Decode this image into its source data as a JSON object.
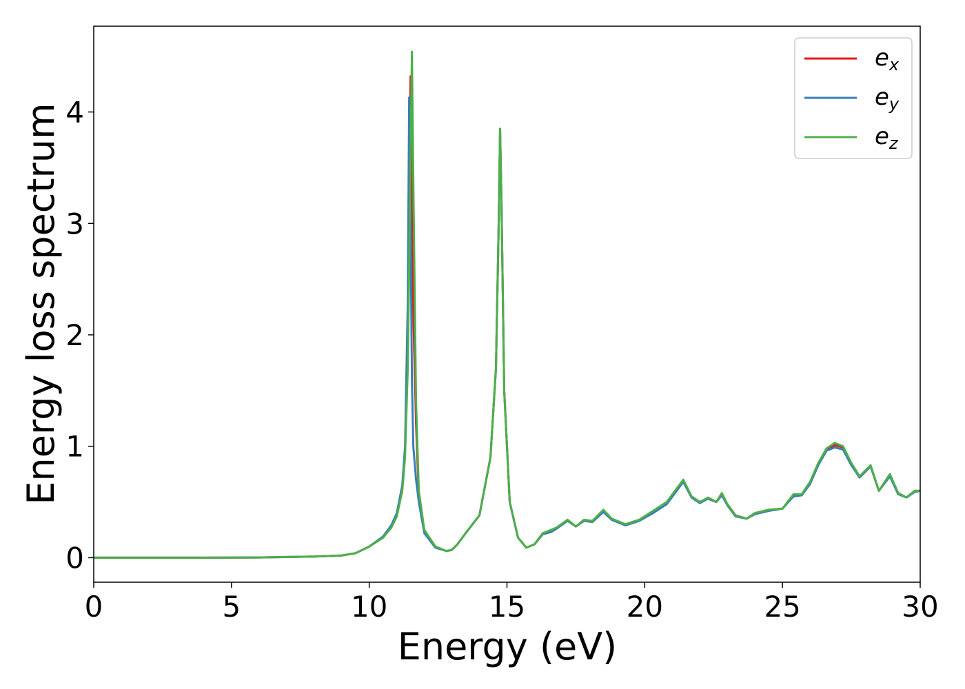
{
  "chart_data": {
    "type": "line",
    "xlabel": "Energy (eV)",
    "ylabel": "Energy loss spectrum",
    "x": [
      0,
      2,
      4,
      6,
      8,
      9,
      9.5,
      10,
      10.5,
      10.8,
      11,
      11.2,
      11.3,
      11.4,
      11.45,
      11.5,
      11.55,
      11.6,
      11.7,
      11.8,
      12,
      12.4,
      12.8,
      13,
      13.2,
      13.5,
      14,
      14.4,
      14.6,
      14.7,
      14.75,
      14.8,
      14.9,
      15.1,
      15.4,
      15.7,
      16,
      16.3,
      16.6,
      16.8,
      17.2,
      17.5,
      17.8,
      18.1,
      18.5,
      18.8,
      19.3,
      19.8,
      20.3,
      20.8,
      21.1,
      21.4,
      21.7,
      22,
      22.3,
      22.6,
      22.8,
      23,
      23.3,
      23.7,
      24,
      24.5,
      25,
      25.4,
      25.7,
      26,
      26.3,
      26.6,
      26.9,
      27.2,
      27.5,
      27.8,
      28.2,
      28.5,
      28.9,
      29.2,
      29.5,
      29.8,
      30
    ],
    "series": [
      {
        "name": "ex",
        "color": "#e41a1c",
        "values": [
          0,
          0,
          0,
          0.002,
          0.01,
          0.02,
          0.04,
          0.1,
          0.18,
          0.27,
          0.38,
          0.62,
          0.95,
          1.9,
          3.2,
          4.32,
          3.0,
          2.2,
          1.2,
          0.55,
          0.24,
          0.1,
          0.06,
          0.07,
          0.12,
          0.22,
          0.38,
          0.9,
          1.7,
          3.0,
          3.84,
          3.2,
          1.5,
          0.5,
          0.18,
          0.09,
          0.12,
          0.22,
          0.24,
          0.27,
          0.34,
          0.28,
          0.34,
          0.33,
          0.42,
          0.35,
          0.3,
          0.34,
          0.41,
          0.5,
          0.59,
          0.69,
          0.55,
          0.5,
          0.53,
          0.5,
          0.57,
          0.48,
          0.38,
          0.35,
          0.4,
          0.43,
          0.44,
          0.56,
          0.57,
          0.67,
          0.84,
          0.97,
          1.01,
          0.99,
          0.84,
          0.72,
          0.82,
          0.6,
          0.74,
          0.58,
          0.54,
          0.6,
          0.6
        ]
      },
      {
        "name": "ey",
        "color": "#377eb8",
        "values": [
          0,
          0,
          0,
          0.002,
          0.01,
          0.02,
          0.04,
          0.1,
          0.19,
          0.29,
          0.4,
          0.65,
          1.0,
          2.3,
          4.13,
          3.0,
          1.6,
          1.0,
          0.7,
          0.5,
          0.22,
          0.09,
          0.06,
          0.07,
          0.12,
          0.22,
          0.38,
          0.9,
          1.7,
          3.0,
          3.84,
          3.2,
          1.5,
          0.5,
          0.18,
          0.09,
          0.12,
          0.21,
          0.23,
          0.26,
          0.33,
          0.28,
          0.33,
          0.32,
          0.41,
          0.34,
          0.29,
          0.33,
          0.4,
          0.48,
          0.58,
          0.68,
          0.54,
          0.49,
          0.53,
          0.5,
          0.56,
          0.47,
          0.37,
          0.35,
          0.39,
          0.42,
          0.44,
          0.55,
          0.56,
          0.66,
          0.83,
          0.96,
          0.99,
          0.97,
          0.83,
          0.72,
          0.82,
          0.6,
          0.73,
          0.57,
          0.54,
          0.59,
          0.6
        ]
      },
      {
        "name": "ez",
        "color": "#4daf4a",
        "values": [
          0,
          0,
          0,
          0.002,
          0.01,
          0.02,
          0.04,
          0.1,
          0.18,
          0.27,
          0.37,
          0.6,
          0.9,
          1.7,
          2.6,
          3.6,
          4.54,
          3.4,
          1.4,
          0.6,
          0.25,
          0.1,
          0.06,
          0.07,
          0.12,
          0.22,
          0.38,
          0.9,
          1.7,
          3.0,
          3.85,
          3.2,
          1.5,
          0.5,
          0.18,
          0.09,
          0.12,
          0.22,
          0.25,
          0.27,
          0.34,
          0.28,
          0.34,
          0.33,
          0.43,
          0.35,
          0.3,
          0.34,
          0.42,
          0.5,
          0.6,
          0.7,
          0.55,
          0.5,
          0.54,
          0.5,
          0.58,
          0.48,
          0.38,
          0.35,
          0.4,
          0.43,
          0.44,
          0.57,
          0.57,
          0.68,
          0.85,
          0.98,
          1.03,
          1.0,
          0.85,
          0.73,
          0.83,
          0.6,
          0.75,
          0.58,
          0.54,
          0.6,
          0.6
        ]
      }
    ],
    "xlim": [
      0,
      30
    ],
    "xticks": [
      0,
      5,
      10,
      15,
      20,
      25,
      30
    ],
    "ylim": [
      -0.22,
      4.77
    ],
    "yticks": [
      0,
      1,
      2,
      3,
      4
    ],
    "grid": false,
    "legend": "upper right"
  }
}
